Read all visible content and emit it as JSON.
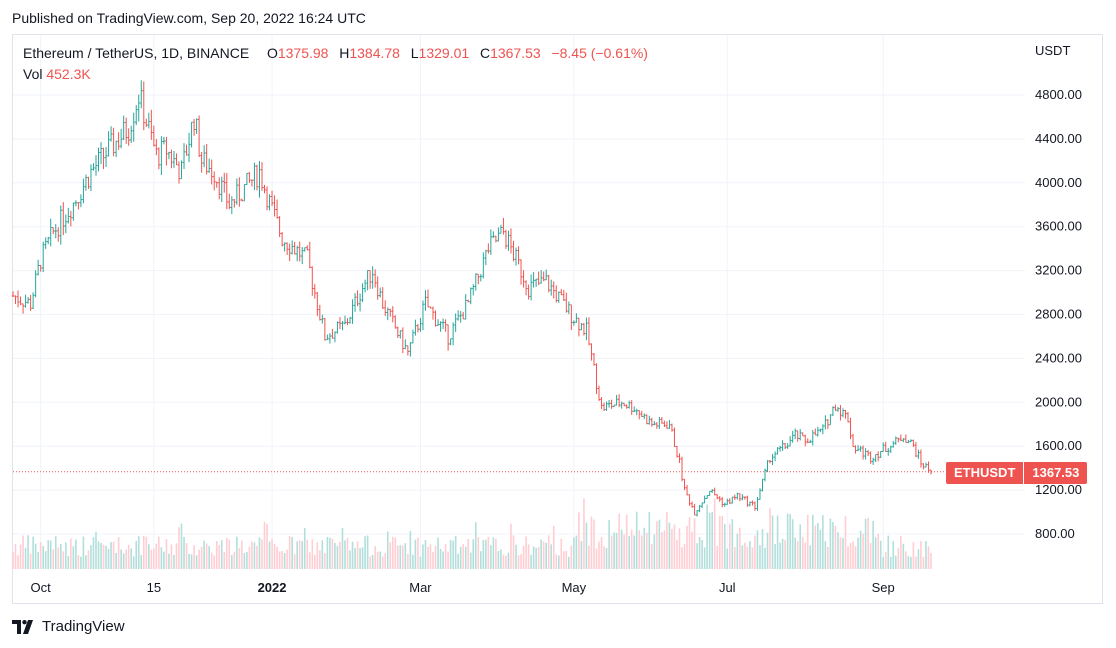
{
  "header": {
    "published": "Published on TradingView.com, Sep 20, 2022 16:24 UTC"
  },
  "legend": {
    "symbol": "Ethereum / TetherUS, 1D, BINANCE",
    "o_label": "O",
    "o_value": "1375.98",
    "h_label": "H",
    "h_value": "1384.78",
    "l_label": "L",
    "l_value": "1329.01",
    "c_label": "C",
    "c_value": "1367.53",
    "change": "−8.45 (−0.61%)",
    "vol_label": "Vol",
    "vol_value": "452.3K"
  },
  "axis": {
    "unit": "USDT"
  },
  "price_tag": {
    "symbol": "ETHUSDT",
    "value": "1367.53"
  },
  "footer": {
    "brand": "TradingView"
  },
  "colors": {
    "up": "#26a69a",
    "down": "#ef5350",
    "up_volume": "#b2dfdb",
    "down_volume": "#ffcdd2",
    "grid": "#f0f3fa",
    "last_price_line": "#ef5350"
  },
  "chart_data": {
    "type": "candlestick",
    "symbol": "ETHUSDT",
    "interval": "1D",
    "y_ticks": [
      "4800.00",
      "4400.00",
      "4000.00",
      "3600.00",
      "3200.00",
      "2800.00",
      "2400.00",
      "2000.00",
      "1600.00",
      "1200.00",
      "800.00"
    ],
    "ylim": [
      650,
      5200
    ],
    "x_ticks": [
      {
        "label": "Oct",
        "date": "2021-10-01",
        "bold": false
      },
      {
        "label": "15",
        "date": "2021-11-15",
        "bold": false
      },
      {
        "label": "2022",
        "date": "2022-01-01",
        "bold": true
      },
      {
        "label": "Mar",
        "date": "2022-03-01",
        "bold": false
      },
      {
        "label": "May",
        "date": "2022-05-01",
        "bold": false
      },
      {
        "label": "Jul",
        "date": "2022-07-01",
        "bold": false
      },
      {
        "label": "Sep",
        "date": "2022-09-01",
        "bold": false
      }
    ],
    "start_date": "2021-09-20",
    "end_date": "2022-09-20",
    "close_path": [
      [
        "2021-09-20",
        2970
      ],
      [
        "2021-09-27",
        2900
      ],
      [
        "2021-10-01",
        3300
      ],
      [
        "2021-10-06",
        3550
      ],
      [
        "2021-10-15",
        3850
      ],
      [
        "2021-10-21",
        4100
      ],
      [
        "2021-10-28",
        4300
      ],
      [
        "2021-11-05",
        4500
      ],
      [
        "2021-11-09",
        4800
      ],
      [
        "2021-11-16",
        4250
      ],
      [
        "2021-11-20",
        4300
      ],
      [
        "2021-11-26",
        4100
      ],
      [
        "2021-12-01",
        4600
      ],
      [
        "2021-12-04",
        4200
      ],
      [
        "2021-12-09",
        4100
      ],
      [
        "2021-12-15",
        3800
      ],
      [
        "2021-12-27",
        4100
      ],
      [
        "2022-01-01",
        3750
      ],
      [
        "2022-01-05",
        3500
      ],
      [
        "2022-01-15",
        3300
      ],
      [
        "2022-01-22",
        2600
      ],
      [
        "2022-01-30",
        2700
      ],
      [
        "2022-02-06",
        3050
      ],
      [
        "2022-02-10",
        3200
      ],
      [
        "2022-02-14",
        2900
      ],
      [
        "2022-02-24",
        2450
      ],
      [
        "2022-03-03",
        2900
      ],
      [
        "2022-03-12",
        2600
      ],
      [
        "2022-03-20",
        2900
      ],
      [
        "2022-03-28",
        3400
      ],
      [
        "2022-04-03",
        3550
      ],
      [
        "2022-04-08",
        3300
      ],
      [
        "2022-04-13",
        3050
      ],
      [
        "2022-04-20",
        3100
      ],
      [
        "2022-04-30",
        2800
      ],
      [
        "2022-05-06",
        2650
      ],
      [
        "2022-05-09",
        2300
      ],
      [
        "2022-05-12",
        1950
      ],
      [
        "2022-05-20",
        2000
      ],
      [
        "2022-05-25",
        1950
      ],
      [
        "2022-06-01",
        1800
      ],
      [
        "2022-06-08",
        1800
      ],
      [
        "2022-06-12",
        1450
      ],
      [
        "2022-06-14",
        1200
      ],
      [
        "2022-06-18",
        1000
      ],
      [
        "2022-06-24",
        1200
      ],
      [
        "2022-06-30",
        1070
      ],
      [
        "2022-07-05",
        1150
      ],
      [
        "2022-07-12",
        1050
      ],
      [
        "2022-07-18",
        1500
      ],
      [
        "2022-07-24",
        1600
      ],
      [
        "2022-07-28",
        1700
      ],
      [
        "2022-08-01",
        1650
      ],
      [
        "2022-08-08",
        1750
      ],
      [
        "2022-08-13",
        1980
      ],
      [
        "2022-08-18",
        1850
      ],
      [
        "2022-08-20",
        1600
      ],
      [
        "2022-08-27",
        1500
      ],
      [
        "2022-09-01",
        1570
      ],
      [
        "2022-09-07",
        1650
      ],
      [
        "2022-09-09",
        1700
      ],
      [
        "2022-09-13",
        1600
      ],
      [
        "2022-09-16",
        1450
      ],
      [
        "2022-09-20",
        1367.53
      ]
    ]
  }
}
